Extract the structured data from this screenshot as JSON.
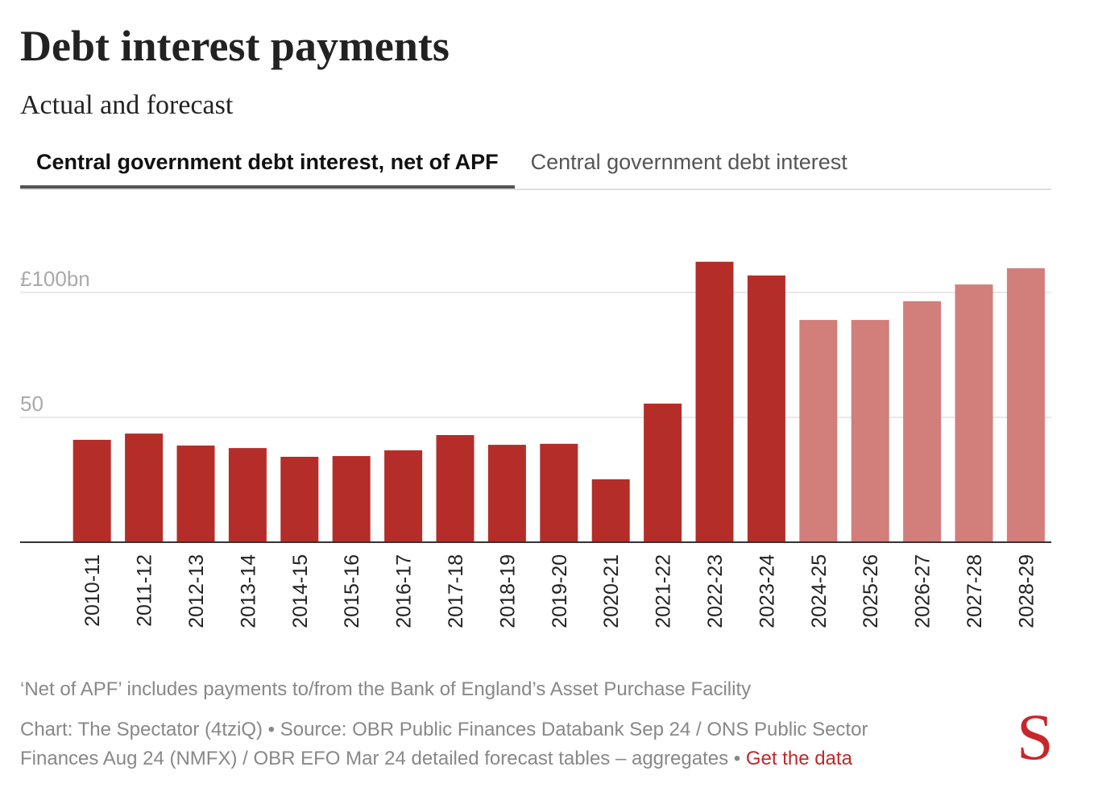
{
  "header": {
    "title": "Debt interest payments",
    "subtitle": "Actual and forecast"
  },
  "tabs": [
    {
      "label": "Central government debt interest, net of APF",
      "active": true
    },
    {
      "label": "Central government debt interest",
      "active": false
    }
  ],
  "chart_data": {
    "type": "bar",
    "title": "Debt interest payments",
    "subtitle": "Actual and forecast",
    "ylim": [
      0,
      115
    ],
    "yticks": [
      50,
      100
    ],
    "ytick_labels": [
      "50",
      "£100bn"
    ],
    "grid": true,
    "categories": [
      "2010-11",
      "2011-12",
      "2012-13",
      "2013-14",
      "2014-15",
      "2015-16",
      "2016-17",
      "2017-18",
      "2018-19",
      "2019-20",
      "2020-21",
      "2021-22",
      "2022-23",
      "2023-24",
      "2024-25",
      "2025-26",
      "2026-27",
      "2027-28",
      "2028-29"
    ],
    "values": [
      41.0,
      43.5,
      38.7,
      37.7,
      34.2,
      34.5,
      36.8,
      42.9,
      39.0,
      39.4,
      25.2,
      55.5,
      112.3,
      106.8,
      89.0,
      89.0,
      96.5,
      103.2,
      109.7
    ],
    "forecast": [
      false,
      false,
      false,
      false,
      false,
      false,
      false,
      false,
      false,
      false,
      false,
      false,
      false,
      false,
      true,
      true,
      true,
      true,
      true
    ],
    "unit": "£bn",
    "colors": {
      "actual": "#b42d28",
      "forecast": "#d27e7b"
    }
  },
  "footer": {
    "note": "‘Net of APF’ includes payments to/from the Bank of England’s Asset Purchase Facility",
    "source": "Chart: The Spectator (4tziQ) • Source: OBR Public Finances Databank Sep 24 / ONS Public Sector Finances Aug 24 (NMFX) / OBR EFO Mar 24 detailed forecast tables – aggregates • ",
    "link": "Get the data",
    "logo": "S"
  }
}
